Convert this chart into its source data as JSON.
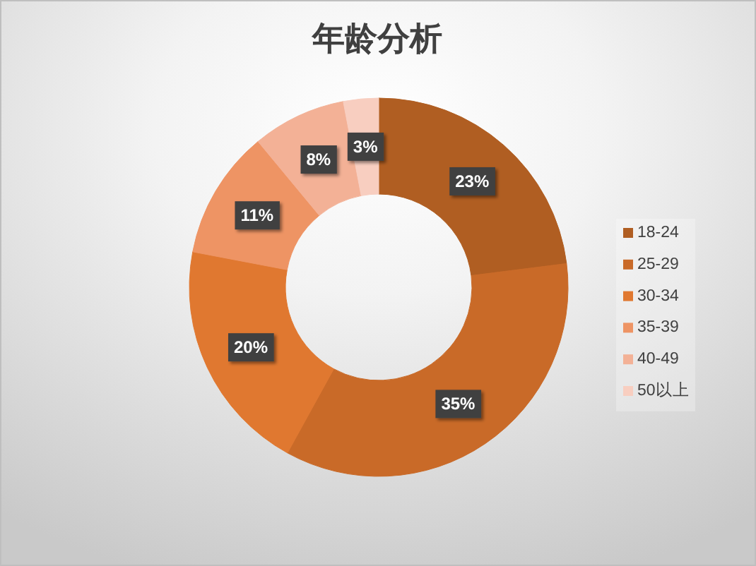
{
  "chart_data": {
    "type": "donut",
    "title": "年龄分析",
    "categories": [
      "18-24",
      "25-29",
      "30-34",
      "35-39",
      "40-49",
      "50以上"
    ],
    "values": [
      23,
      35,
      20,
      11,
      8,
      3
    ],
    "colors": [
      "#b05e22",
      "#c96a28",
      "#e07830",
      "#ee9464",
      "#f3b196",
      "#f8cec0"
    ],
    "value_labels": [
      "23%",
      "35%",
      "20%",
      "11%",
      "8%",
      "3%"
    ],
    "legend": "right"
  }
}
